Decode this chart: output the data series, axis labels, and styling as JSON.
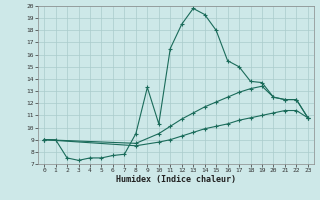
{
  "xlabel": "Humidex (Indice chaleur)",
  "bg_color": "#cde8e8",
  "grid_color": "#aacccc",
  "line_color": "#1a6b5a",
  "xlim": [
    -0.5,
    23.5
  ],
  "ylim": [
    7,
    20
  ],
  "xticks": [
    0,
    1,
    2,
    3,
    4,
    5,
    6,
    7,
    8,
    9,
    10,
    11,
    12,
    13,
    14,
    15,
    16,
    17,
    18,
    19,
    20,
    21,
    22,
    23
  ],
  "yticks": [
    7,
    8,
    9,
    10,
    11,
    12,
    13,
    14,
    15,
    16,
    17,
    18,
    19,
    20
  ],
  "line1_x": [
    0,
    1,
    2,
    3,
    4,
    5,
    6,
    7,
    8,
    9,
    10,
    11,
    12,
    13,
    14,
    15,
    16,
    17,
    18,
    19,
    20,
    21,
    22,
    23
  ],
  "line1_y": [
    9,
    9,
    7.5,
    7.3,
    7.5,
    7.5,
    7.7,
    7.8,
    9.5,
    13.3,
    10.3,
    16.5,
    18.5,
    19.8,
    19.3,
    18.0,
    15.5,
    15.0,
    13.8,
    13.7,
    12.5,
    12.3,
    12.3,
    10.8
  ],
  "line2_x": [
    0,
    8,
    10,
    11,
    12,
    13,
    14,
    15,
    16,
    17,
    18,
    19,
    20,
    21,
    22,
    23
  ],
  "line2_y": [
    9,
    8.7,
    9.5,
    10.1,
    10.7,
    11.2,
    11.7,
    12.1,
    12.5,
    12.9,
    13.2,
    13.4,
    12.5,
    12.3,
    12.3,
    10.8
  ],
  "line3_x": [
    0,
    8,
    10,
    11,
    12,
    13,
    14,
    15,
    16,
    17,
    18,
    19,
    20,
    21,
    22,
    23
  ],
  "line3_y": [
    9,
    8.5,
    8.8,
    9.0,
    9.3,
    9.6,
    9.9,
    10.1,
    10.3,
    10.6,
    10.8,
    11.0,
    11.2,
    11.4,
    11.4,
    10.8
  ]
}
